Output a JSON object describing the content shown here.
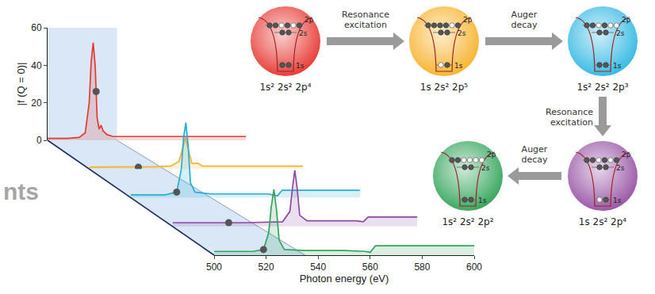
{
  "chart_data": {
    "type": "line",
    "xlabel": "Photon energy (eV)",
    "ylabel": "|f (Q = 0)|",
    "xlim": [
      500,
      600
    ],
    "xticks": [
      500,
      520,
      540,
      560,
      580,
      600
    ],
    "ylim": [
      0,
      60
    ],
    "yticks": [
      0,
      20,
      40,
      60
    ],
    "grid": false,
    "series": [
      {
        "color": "#e53a2f",
        "x": [
          500,
          510,
          516,
          519,
          521,
          522,
          523,
          524,
          525,
          526,
          527,
          528,
          530,
          533,
          540,
          560,
          580,
          600
        ],
        "values": [
          1,
          1,
          1.5,
          4,
          20,
          42,
          52,
          40,
          12,
          6,
          8,
          5,
          3,
          2,
          2,
          2,
          2,
          2
        ],
        "marked": {
          "x": 524.5,
          "value": 26
        }
      },
      {
        "color": "#f4b22e",
        "x": [
          500,
          520,
          530,
          538,
          542,
          544,
          545,
          546,
          548,
          551,
          553,
          560,
          580,
          600
        ],
        "values": [
          1,
          1,
          1.2,
          1.5,
          4,
          12,
          17,
          12,
          3,
          3,
          1.5,
          1.5,
          1.5,
          1.5
        ],
        "marked": {
          "x": 523,
          "value": 1
        }
      },
      {
        "color": "#22aed6",
        "x": [
          500,
          515,
          520,
          522,
          523,
          524,
          525,
          526,
          528,
          535,
          550,
          560,
          564,
          566,
          575,
          590,
          600
        ],
        "values": [
          1.5,
          1.5,
          3,
          15,
          32,
          40,
          28,
          8,
          3,
          2,
          2,
          2,
          1,
          4,
          4,
          4,
          4
        ],
        "marked": {
          "x": 520,
          "value": 3
        }
      },
      {
        "color": "#8c4b9e",
        "x": [
          500,
          530,
          545,
          548,
          549,
          550,
          551,
          552,
          555,
          565,
          575,
          578,
          580,
          600
        ],
        "values": [
          2,
          2,
          2.5,
          8,
          20,
          30,
          20,
          6,
          3,
          3,
          3,
          2.5,
          5,
          5
        ],
        "marked": {
          "x": 523,
          "value": 2
        }
      },
      {
        "color": "#34a35c",
        "x": [
          500,
          515,
          519,
          521,
          522,
          523,
          524,
          525,
          527,
          535,
          550,
          558,
          560,
          562,
          575,
          590,
          600
        ],
        "values": [
          2,
          2,
          3,
          12,
          26,
          35,
          24,
          8,
          3,
          2.5,
          2.5,
          2,
          1.5,
          5,
          5,
          5,
          5
        ],
        "marked": {
          "x": 519,
          "value": 3
        }
      }
    ]
  },
  "background_text": "nts",
  "diagram": {
    "shell_labels": [
      "1s",
      "2s",
      "2p"
    ],
    "nodes": [
      {
        "label": "1s² 2s² 2p⁴",
        "color": "#e8403a",
        "electrons": {
          "1s": 2,
          "2s": 2,
          "2p": 4
        }
      },
      {
        "label": "1s 2s² 2p⁵",
        "color": "#f7b534",
        "electrons": {
          "1s": 1,
          "2s": 2,
          "2p": 5
        }
      },
      {
        "label": "1s² 2s² 2p³",
        "color": "#3bbbe3",
        "electrons": {
          "1s": 2,
          "2s": 2,
          "2p": 3
        }
      },
      {
        "label": "1s 2s² 2p⁴",
        "color": "#9b5aa8",
        "electrons": {
          "1s": 1,
          "2s": 2,
          "2p": 4
        }
      },
      {
        "label": "1s² 2s² 2p²",
        "color": "#3aa860",
        "electrons": {
          "1s": 2,
          "2s": 2,
          "2p": 2
        }
      }
    ],
    "edges": [
      {
        "from": 0,
        "to": 1,
        "label": "Resonance excitation"
      },
      {
        "from": 1,
        "to": 2,
        "label": "Auger decay"
      },
      {
        "from": 2,
        "to": 3,
        "label": "Resonance excitation"
      },
      {
        "from": 3,
        "to": 4,
        "label": "Auger decay"
      }
    ]
  }
}
